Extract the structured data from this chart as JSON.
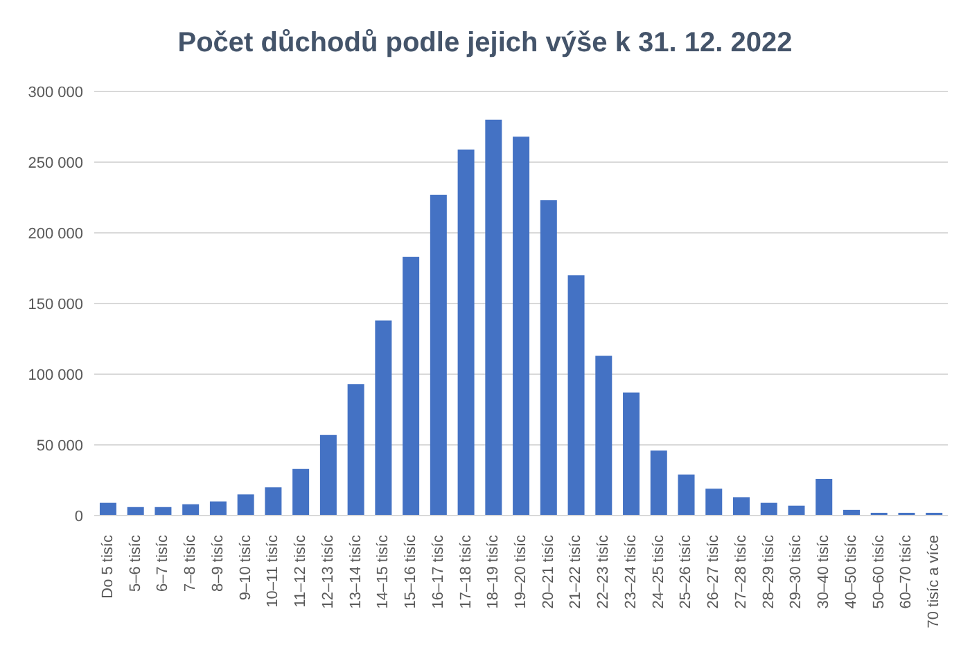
{
  "chart_data": {
    "type": "bar",
    "title": "Počet důchodů podle jejich výše k 31. 12. 2022",
    "categories": [
      "Do 5 tisíc",
      "5–6 tisíc",
      "6–7 tisíc",
      "7–8 tisíc",
      "8–9 tisíc",
      "9–10 tisíc",
      "10–11 tisíc",
      "11–12 tisíc",
      "12–13 tisíc",
      "13–14 tisíc",
      "14–15 tisíc",
      "15–16 tisíc",
      "16–17 tisíc",
      "17–18 tisíc",
      "18–19 tisíc",
      "19–20 tisíc",
      "20–21 tisíc",
      "21–22 tisíc",
      "22–23 tisíc",
      "23–24 tisíc",
      "24–25 tisíc",
      "25–26 tisíc",
      "26–27 tisíc",
      "27–28 tisíc",
      "28–29 tisíc",
      "29–30 tisíc",
      "30–40 tisíc",
      "40–50 tisíc",
      "50–60 tisíc",
      "60–70 tisíc",
      "70 tisíc a více"
    ],
    "values": [
      9000,
      6000,
      6000,
      8000,
      10000,
      15000,
      20000,
      33000,
      57000,
      93000,
      138000,
      183000,
      227000,
      259000,
      280000,
      268000,
      223000,
      170000,
      113000,
      87000,
      46000,
      29000,
      19000,
      13000,
      9000,
      7000,
      26000,
      4000,
      1000,
      1000,
      1000
    ],
    "color": "#4472c4",
    "ylim": [
      0,
      300000
    ],
    "yticks": [
      {
        "value": 0,
        "label": "0"
      },
      {
        "value": 50000,
        "label": "50 000"
      },
      {
        "value": 100000,
        "label": "100 000"
      },
      {
        "value": 150000,
        "label": "150 000"
      },
      {
        "value": 200000,
        "label": "200 000"
      },
      {
        "value": 250000,
        "label": "250 000"
      },
      {
        "value": 300000,
        "label": "300 000"
      }
    ],
    "grid": "y"
  }
}
